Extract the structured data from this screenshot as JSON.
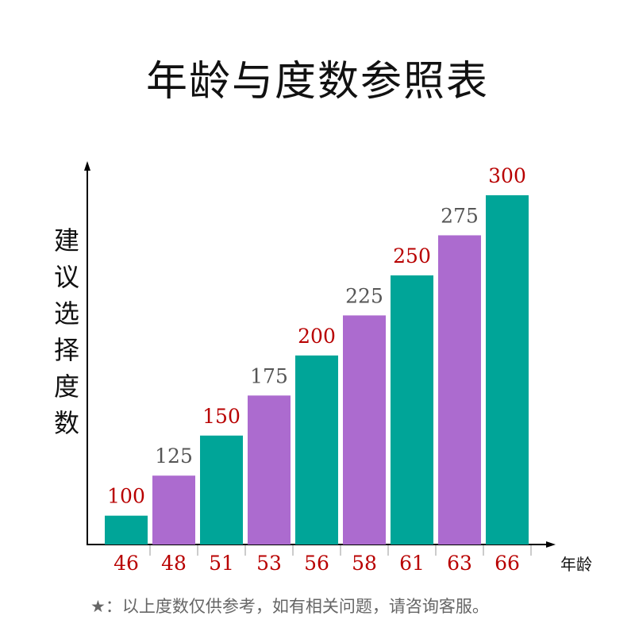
{
  "chart_data": {
    "type": "bar",
    "title": "年龄与度数参照表",
    "xlabel": "年龄",
    "ylabel": "建议选择度数",
    "categories": [
      "46",
      "48",
      "51",
      "53",
      "56",
      "58",
      "61",
      "63",
      "66"
    ],
    "values": [
      100,
      125,
      150,
      175,
      200,
      225,
      250,
      275,
      300
    ],
    "data_labels": [
      "100",
      "125",
      "150",
      "175",
      "200",
      "225",
      "250",
      "275",
      "300"
    ],
    "ylim": [
      82,
      300
    ],
    "grid": false,
    "colors": {
      "teal": "#00a598",
      "purple": "#ac6bcf",
      "label_red": "#b80000",
      "label_gray": "#555555",
      "tick_red": "#b80000"
    }
  },
  "footnote": "★：以上度数仅供参考，如有相关问题，请咨询客服。"
}
